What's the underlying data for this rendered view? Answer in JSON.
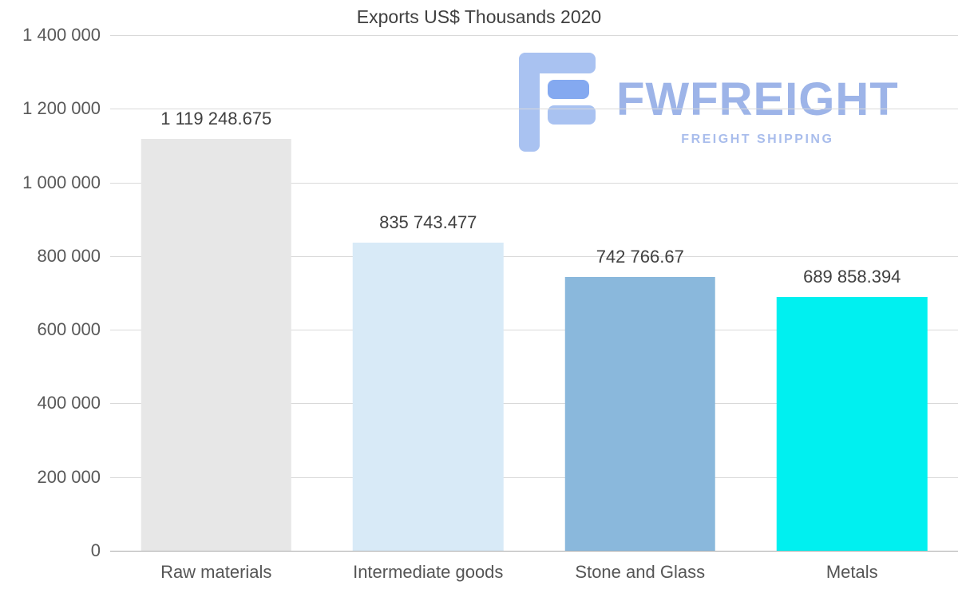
{
  "logo": {
    "name": "FWFREIGHT",
    "tagline": "FREIGHT SHIPPING",
    "name_color": "#9db4e8",
    "tagline_color": "#a9bdec",
    "icon_light": "#a9c2f1",
    "icon_dark": "#84a9f0"
  },
  "chart_data": {
    "type": "bar",
    "title": "Exports US$ Thousands 2020",
    "categories": [
      "Raw materials",
      "Intermediate goods",
      "Stone and Glass",
      "Metals"
    ],
    "values": [
      1119248.675,
      835743.477,
      742766.67,
      689858.394
    ],
    "value_labels": [
      "1 119 248.675",
      "835 743.477",
      "742 766.67",
      "689 858.394"
    ],
    "bar_colors": [
      "#e7e7e7",
      "#d8eaf7",
      "#8ab8dc",
      "#00f0f0"
    ],
    "xlabel": "",
    "ylabel": "",
    "ylim": [
      0,
      1400000
    ],
    "yticks": [
      0,
      200000,
      400000,
      600000,
      800000,
      1000000,
      1200000,
      1400000
    ],
    "ytick_labels": [
      "0",
      "200 000",
      "400 000",
      "600 000",
      "800 000",
      "1 000 000",
      "1 200 000",
      "1 400 000"
    ],
    "grid": true,
    "legend": false
  }
}
